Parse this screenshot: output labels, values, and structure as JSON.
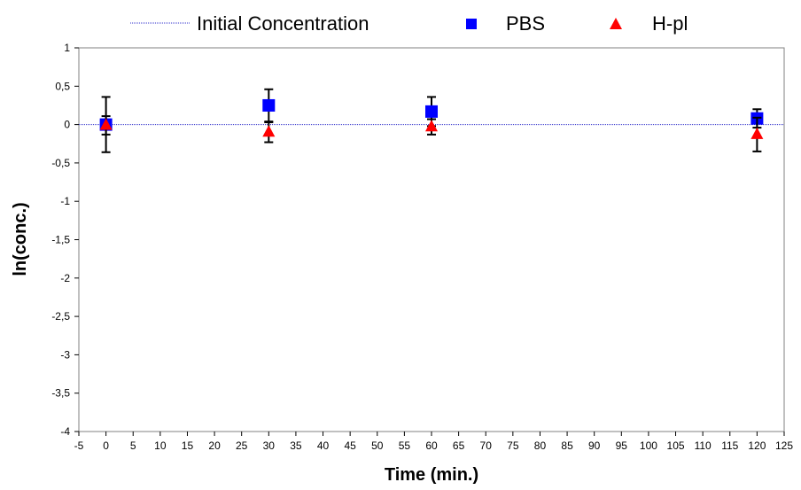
{
  "chart_data": {
    "type": "scatter",
    "xlabel": "Time (min.)",
    "ylabel": "ln(conc.)",
    "xlim": [
      -5,
      125
    ],
    "ylim": [
      -4,
      1
    ],
    "x_ticks": [
      -5,
      0,
      5,
      10,
      15,
      20,
      25,
      30,
      35,
      40,
      45,
      50,
      55,
      60,
      65,
      70,
      75,
      80,
      85,
      90,
      95,
      100,
      105,
      110,
      115,
      120,
      125
    ],
    "y_ticks": [
      1,
      0.5,
      0,
      -0.5,
      -1,
      -1.5,
      -2,
      -2.5,
      -3,
      -3.5,
      -4
    ],
    "y_tick_labels": [
      "1",
      "0,5",
      "0",
      "-0,5",
      "-1",
      "-1,5",
      "-2",
      "-2,5",
      "-3",
      "-3,5",
      "-4"
    ],
    "grid": false,
    "legend_position": "top",
    "reference_line": {
      "name": "Initial Concentration",
      "y": 0,
      "color": "#3333cc"
    },
    "series": [
      {
        "name": "PBS",
        "marker": "square",
        "color": "#0000ff",
        "points": [
          {
            "x": 0,
            "y": 0.0,
            "err": 0.36
          },
          {
            "x": 30,
            "y": 0.25,
            "err": 0.21
          },
          {
            "x": 60,
            "y": 0.17,
            "err": 0.19
          },
          {
            "x": 120,
            "y": 0.08,
            "err": 0.12
          }
        ]
      },
      {
        "name": "H-pl",
        "marker": "triangle",
        "color": "#ff0000",
        "points": [
          {
            "x": 0,
            "y": -0.01,
            "err": 0.12
          },
          {
            "x": 30,
            "y": -0.1,
            "err": 0.13
          },
          {
            "x": 60,
            "y": -0.03,
            "err": 0.1
          },
          {
            "x": 120,
            "y": -0.13,
            "err": 0.22
          }
        ]
      }
    ]
  }
}
